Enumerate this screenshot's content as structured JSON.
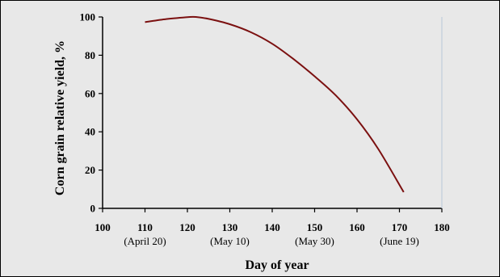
{
  "chart_data": {
    "type": "line",
    "title": "",
    "xlabel": "Day of year",
    "ylabel": "Corn grain relative yield, %",
    "xlim": [
      100,
      180
    ],
    "ylim": [
      0,
      100
    ],
    "x_ticks": [
      "100",
      "110",
      "120",
      "130",
      "140",
      "150",
      "160",
      "170",
      "180"
    ],
    "y_ticks": [
      "0",
      "20",
      "40",
      "60",
      "80",
      "100"
    ],
    "x_subticks": [
      {
        "at": 110,
        "label": "(April 20)"
      },
      {
        "at": 130,
        "label": "(May 10)"
      },
      {
        "at": 150,
        "label": "(May 30)"
      },
      {
        "at": 170,
        "label": "(June 19)"
      }
    ],
    "series": [
      {
        "color": "#7b1010",
        "points": [
          [
            110,
            97.3
          ],
          [
            115,
            98.9
          ],
          [
            120,
            99.9
          ],
          [
            122,
            100.0
          ],
          [
            125,
            99.0
          ],
          [
            130,
            96.2
          ],
          [
            135,
            92.0
          ],
          [
            140,
            86.0
          ],
          [
            145,
            78.0
          ],
          [
            150,
            69.0
          ],
          [
            155,
            59.0
          ],
          [
            160,
            46.5
          ],
          [
            165,
            31.0
          ],
          [
            171,
            8.5
          ]
        ]
      }
    ],
    "grid": false,
    "legend": "none"
  }
}
